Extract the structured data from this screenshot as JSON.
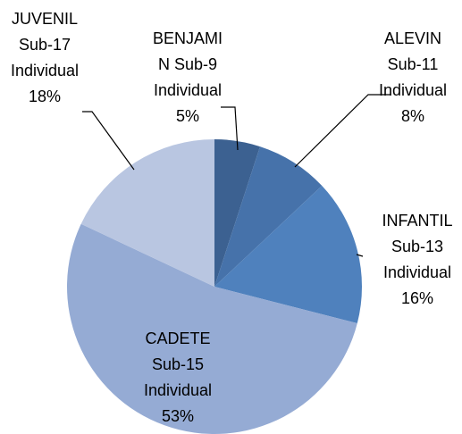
{
  "chart_data": {
    "type": "pie",
    "categories": [
      [
        "BENJAMI",
        "N Sub-9",
        "Individual"
      ],
      [
        "ALEVIN",
        "Sub-11",
        "Individual"
      ],
      [
        "INFANTIL",
        "Sub-13",
        "Individual"
      ],
      [
        "CADETE",
        "Sub-15",
        "Individual"
      ],
      [
        "JUVENIL",
        "Sub-17",
        "Individual"
      ]
    ],
    "values": [
      5,
      8,
      16,
      53,
      18
    ],
    "value_labels": [
      "5%",
      "8%",
      "16%",
      "53%",
      "18%"
    ],
    "colors": [
      "#3c6191",
      "#4672aa",
      "#4f81bd",
      "#95abd4",
      "#b9c6e1"
    ]
  }
}
